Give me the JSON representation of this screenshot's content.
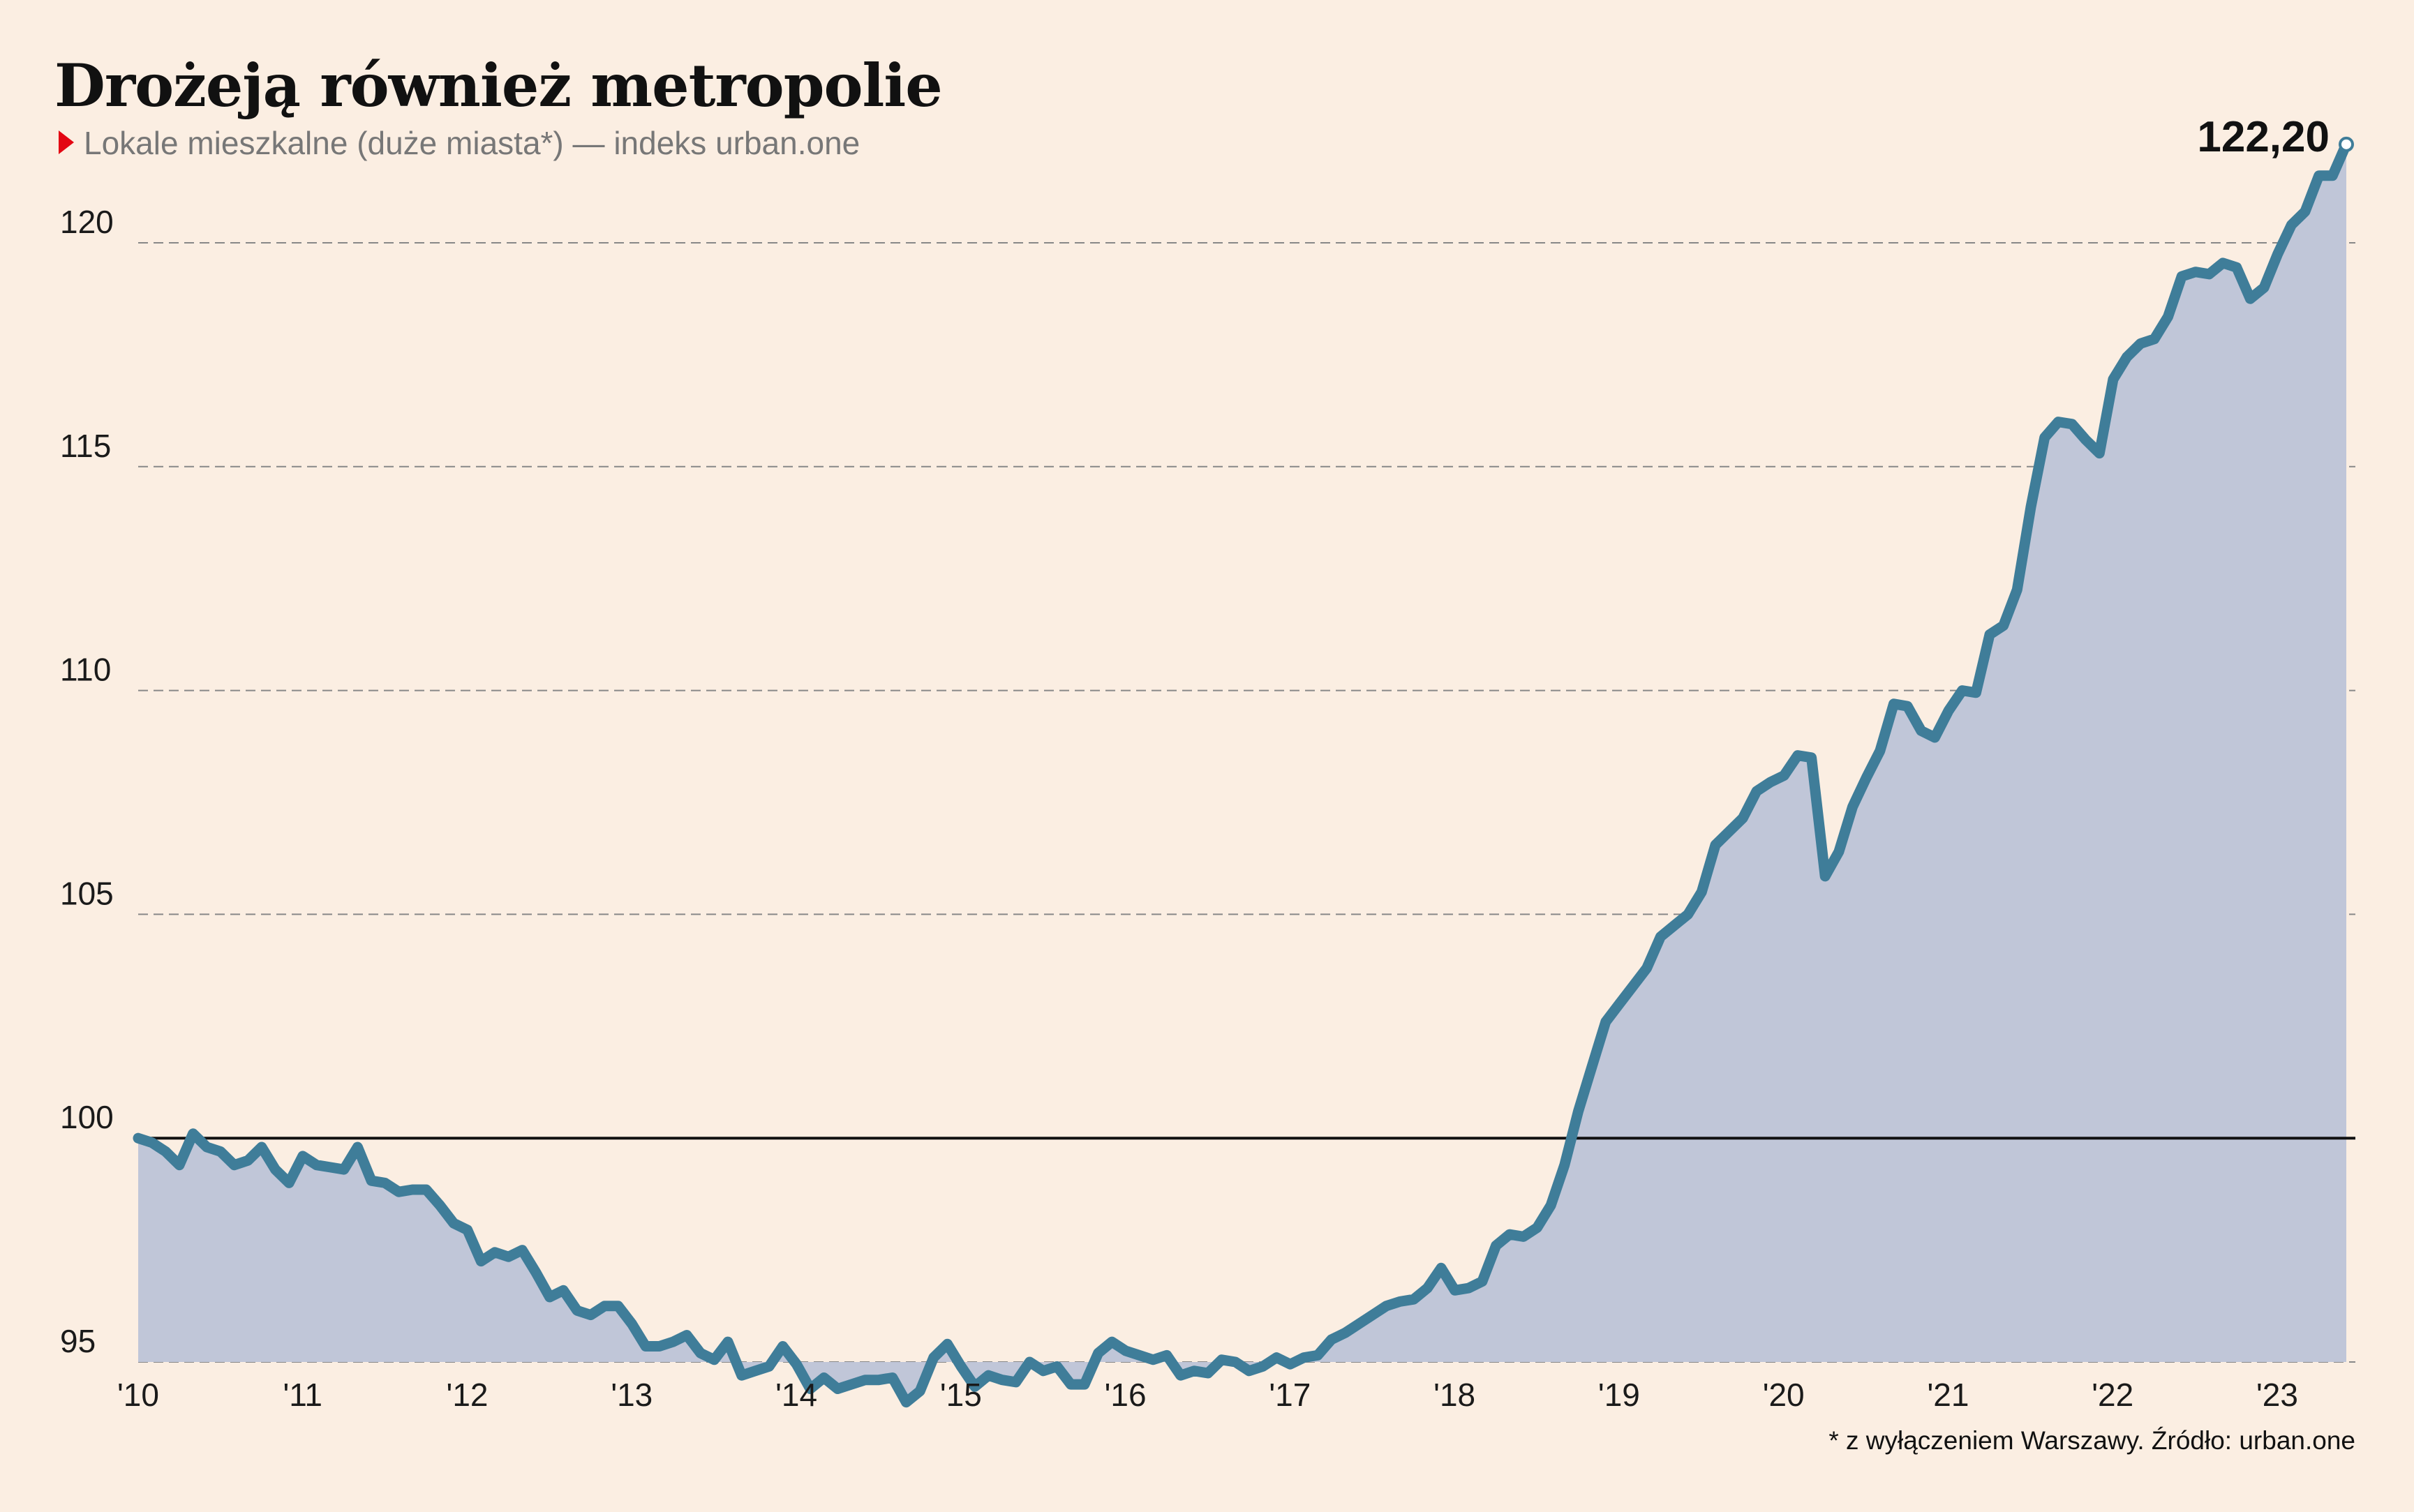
{
  "title": "Drożeją również metropolie",
  "subtitle": "Lokale mieszkalne (duże miasta*) — indeks urban.one",
  "footnote": "* z wyłączeniem Warszawy. Źródło: urban.one",
  "colors": {
    "background": "#fbeee2",
    "line": "#3f7d99",
    "area": "#c0c6d8",
    "marker": "#e30613",
    "grid": "#888888",
    "baseline": "#111111"
  },
  "chart_data": {
    "type": "area",
    "title": "Drożeją również metropolie",
    "subtitle": "Lokale mieszkalne (duże miasta*) — indeks urban.one",
    "x_start": 2010,
    "x_end": 2023.42,
    "x_ticks": [
      2010,
      2011,
      2012,
      2013,
      2014,
      2015,
      2016,
      2017,
      2018,
      2019,
      2020,
      2021,
      2022,
      2023
    ],
    "x_tick_labels": [
      "'10",
      "'11",
      "'12",
      "'13",
      "'14",
      "'15",
      "'16",
      "'17",
      "'18",
      "'19",
      "'20",
      "'21",
      "'22",
      "'23"
    ],
    "ylim": [
      95,
      122.5
    ],
    "y_ticks": [
      95,
      100,
      105,
      110,
      115,
      120
    ],
    "y_tick_labels": [
      "95",
      "100",
      "105",
      "110",
      "115",
      "120"
    ],
    "baseline": 100,
    "grid": "dashed horizontal",
    "end_label": "122,20",
    "series": [
      {
        "values": [
          100.0,
          99.9,
          99.7,
          99.4,
          100.1,
          99.8,
          99.7,
          99.4,
          99.5,
          99.8,
          99.3,
          99.0,
          99.6,
          99.4,
          99.35,
          99.3,
          99.8,
          99.05,
          99.0,
          98.8,
          98.85,
          98.85,
          98.5,
          98.1,
          97.95,
          97.25,
          97.45,
          97.35,
          97.5,
          97.0,
          96.45,
          96.6,
          96.15,
          96.05,
          96.25,
          96.25,
          95.85,
          95.35,
          95.35,
          95.45,
          95.6,
          95.2,
          95.05,
          95.45,
          94.7,
          94.8,
          94.9,
          95.35,
          94.95,
          94.4,
          94.65,
          94.4,
          94.5,
          94.6,
          94.6,
          94.65,
          94.1,
          94.35,
          95.1,
          95.4,
          94.9,
          94.45,
          94.7,
          94.6,
          94.55,
          95.0,
          94.8,
          94.9,
          94.5,
          94.5,
          95.2,
          95.45,
          95.25,
          95.15,
          95.05,
          95.15,
          94.7,
          94.8,
          94.75,
          95.05,
          95.0,
          94.8,
          94.9,
          95.1,
          94.95,
          95.1,
          95.15,
          95.5,
          95.65,
          95.85,
          96.05,
          96.25,
          96.35,
          96.4,
          96.65,
          97.1,
          96.6,
          96.65,
          96.8,
          97.6,
          97.85,
          97.8,
          98.0,
          98.5,
          99.4,
          100.6,
          101.6,
          102.6,
          103.0,
          103.4,
          103.8,
          104.5,
          104.75,
          105.0,
          105.5,
          106.55,
          106.85,
          107.15,
          107.75,
          107.95,
          108.1,
          108.55,
          108.5,
          105.85,
          106.4,
          107.4,
          108.05,
          108.65,
          109.7,
          109.65,
          109.1,
          108.95,
          109.55,
          110.0,
          109.95,
          111.25,
          111.45,
          112.25,
          114.1,
          115.65,
          116.0,
          115.95,
          115.6,
          115.3,
          116.95,
          117.45,
          117.75,
          117.85,
          118.35,
          119.25,
          119.35,
          119.3,
          119.55,
          119.45,
          118.75,
          119.0,
          119.75,
          120.4,
          120.7,
          121.5,
          121.5,
          122.2
        ]
      }
    ]
  }
}
